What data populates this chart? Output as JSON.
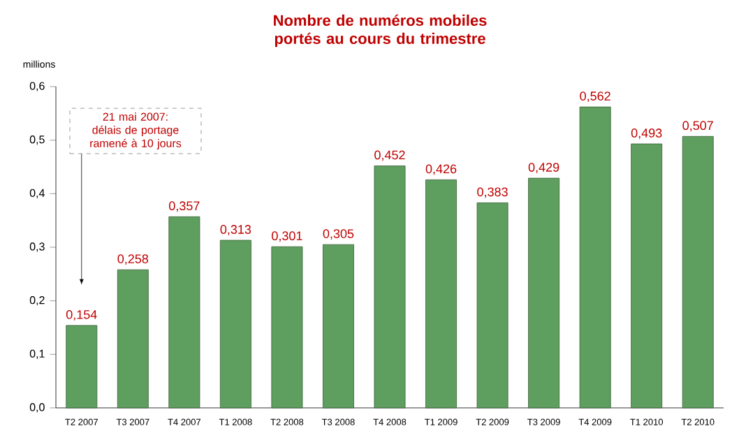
{
  "chart_data": {
    "type": "bar",
    "title": "Nombre de numéros mobiles portés au cours du trimestre",
    "ylabel": "millions",
    "categories": [
      "T2 2007",
      "T3 2007",
      "T4 2007",
      "T1 2008",
      "T2 2008",
      "T3 2008",
      "T4 2008",
      "T1 2009",
      "T2 2009",
      "T3 2009",
      "T4 2009",
      "T1 2010",
      "T2 2010"
    ],
    "values": [
      0.154,
      0.258,
      0.357,
      0.313,
      0.301,
      0.305,
      0.452,
      0.426,
      0.383,
      0.429,
      0.562,
      0.493,
      0.507
    ],
    "value_labels": [
      "0,154",
      "0,258",
      "0,357",
      "0,313",
      "0,301",
      "0,305",
      "0,452",
      "0,426",
      "0,383",
      "0,429",
      "0,562",
      "0,493",
      "0,507"
    ],
    "color": "#5e9e5e",
    "ylim": [
      0,
      0.6
    ],
    "yticks": [
      {
        "value": 0,
        "label": "0,0"
      },
      {
        "value": 0.1,
        "label": "0,1"
      },
      {
        "value": 0.2,
        "label": "0,2"
      },
      {
        "value": 0.3,
        "label": "0,3"
      },
      {
        "value": 0.4,
        "label": "0,4"
      },
      {
        "value": 0.5,
        "label": "0,5"
      },
      {
        "value": 0.6,
        "label": "0,6"
      }
    ],
    "annotations": [
      "21 mai 2007: délais de portage ramené à 10 jours"
    ],
    "grid": false
  }
}
